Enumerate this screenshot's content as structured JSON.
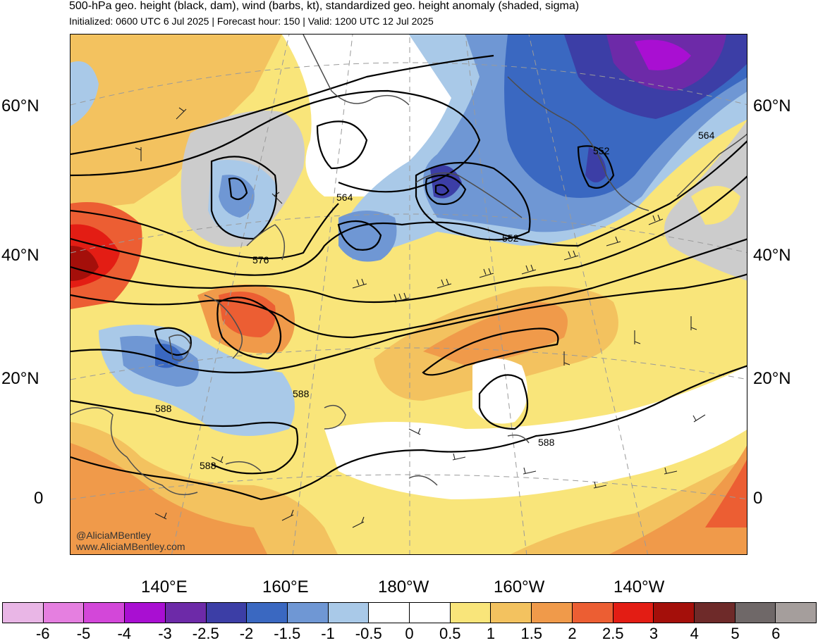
{
  "header": {
    "title": "500-hPa geo. height (black, dam), wind (barbs, kt), standardized geo. height anomaly (shaded, sigma)",
    "subtitle": "Initialized: 0600 UTC 6 Jul 2025 | Forecast hour: 150 | Valid: 1200 UTC 12 Jul 2025"
  },
  "axes": {
    "lat_left": [
      "60°N",
      "40°N",
      "20°N",
      "0"
    ],
    "lat_right": [
      "60°N",
      "40°N",
      "20°N",
      "0"
    ],
    "lon": [
      "140°E",
      "160°E",
      "180°W",
      "160°W",
      "140°W"
    ]
  },
  "contours": {
    "labels": [
      "564",
      "576",
      "552",
      "552",
      "564",
      "588",
      "588",
      "588",
      "588"
    ]
  },
  "credit": {
    "handle": "@AliciaMBentley",
    "site": "www.AliciaMBentley.com"
  },
  "colorbar": {
    "labels": [
      "-6",
      "-5",
      "-4",
      "-3",
      "-2.5",
      "-2",
      "-1.5",
      "-1",
      "-0.5",
      "0",
      "0.5",
      "1",
      "1.5",
      "2",
      "2.5",
      "3",
      "4",
      "5",
      "6"
    ],
    "colors": [
      "#e9b6e6",
      "#e57fe0",
      "#d347d9",
      "#a90fd2",
      "#6d2aa8",
      "#3c3ea6",
      "#3a68c1",
      "#6f97d4",
      "#a9c9e8",
      "#ffffff",
      "#ffffff",
      "#f9e57a",
      "#f3c25f",
      "#f09a4a",
      "#ec5e33",
      "#e31d14",
      "#a40f0a",
      "#6e2a29",
      "#6f6868",
      "#a59e9c"
    ]
  },
  "colors": {
    "land_outline": "#4d4d4d",
    "contour": "#000000",
    "gridline": "#9a9a9a"
  }
}
